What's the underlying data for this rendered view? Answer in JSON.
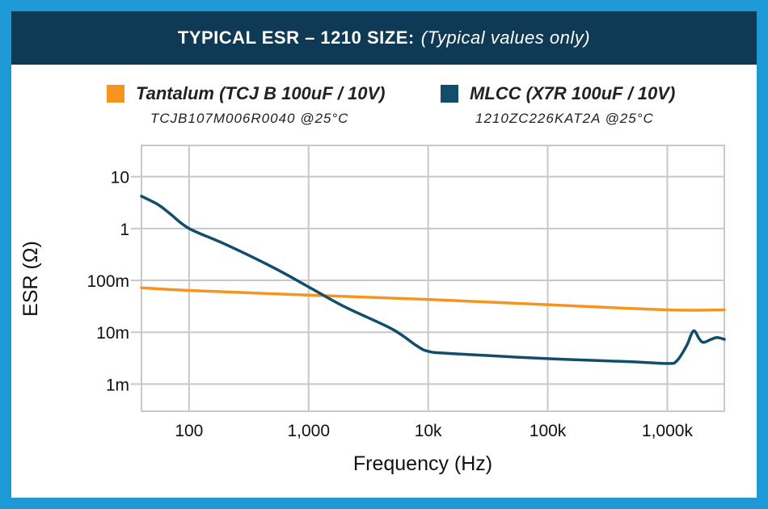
{
  "header": {
    "title_bold": "TYPICAL ESR – 1210 SIZE:",
    "title_italic": "(Typical values only)"
  },
  "legend": [
    {
      "label": "Tantalum (TCJ B 100uF / 10V)",
      "sub": "TCJB107M006R0040 @25°C",
      "color": "#f7941d"
    },
    {
      "label": "MLCC (X7R 100uF / 10V)",
      "sub": "1210ZC226KAT2A @25°C",
      "color": "#124d6b"
    }
  ],
  "colors": {
    "border": "#1d9ad6",
    "title_bg": "#0f3a55",
    "grid": "#c8c8c8"
  },
  "chart_data": {
    "type": "line",
    "xscale": "log",
    "yscale": "log",
    "xlabel": "Frequency (Hz)",
    "ylabel": "ESR (Ω)",
    "xlim": [
      40,
      3000000
    ],
    "ylim": [
      0.0003,
      40
    ],
    "x_ticks": [
      {
        "value": 100,
        "label": "100"
      },
      {
        "value": 1000,
        "label": "1,000"
      },
      {
        "value": 10000,
        "label": "10k"
      },
      {
        "value": 100000,
        "label": "100k"
      },
      {
        "value": 1000000,
        "label": "1,000k"
      }
    ],
    "y_ticks": [
      {
        "value": 10,
        "label": "10"
      },
      {
        "value": 1,
        "label": "1"
      },
      {
        "value": 0.1,
        "label": "100m"
      },
      {
        "value": 0.01,
        "label": "10m"
      },
      {
        "value": 0.001,
        "label": "1m"
      }
    ],
    "grid": true,
    "series": [
      {
        "name": "Tantalum (TCJ B 100uF / 10V)",
        "color": "#f7941d",
        "points": [
          [
            40,
            0.072
          ],
          [
            100,
            0.064
          ],
          [
            1000,
            0.052
          ],
          [
            10000,
            0.043
          ],
          [
            100000,
            0.034
          ],
          [
            1000000,
            0.027
          ],
          [
            3000000,
            0.027
          ]
        ]
      },
      {
        "name": "MLCC (X7R 100uF / 10V)",
        "color": "#124d6b",
        "points": [
          [
            40,
            4.2
          ],
          [
            55,
            2.9
          ],
          [
            70,
            1.9
          ],
          [
            100,
            1.0
          ],
          [
            200,
            0.5
          ],
          [
            500,
            0.18
          ],
          [
            1000,
            0.075
          ],
          [
            2000,
            0.031
          ],
          [
            5000,
            0.0115
          ],
          [
            8000,
            0.0055
          ],
          [
            10000,
            0.0043
          ],
          [
            15000,
            0.0039
          ],
          [
            100000,
            0.0031
          ],
          [
            500000,
            0.0027
          ],
          [
            1000000,
            0.0025
          ],
          [
            1200000,
            0.0028
          ],
          [
            1450000,
            0.0055
          ],
          [
            1600000,
            0.0095
          ],
          [
            1700000,
            0.0105
          ],
          [
            1850000,
            0.0075
          ],
          [
            2000000,
            0.0064
          ],
          [
            2300000,
            0.0072
          ],
          [
            2600000,
            0.0079
          ],
          [
            3000000,
            0.0073
          ]
        ]
      }
    ]
  }
}
